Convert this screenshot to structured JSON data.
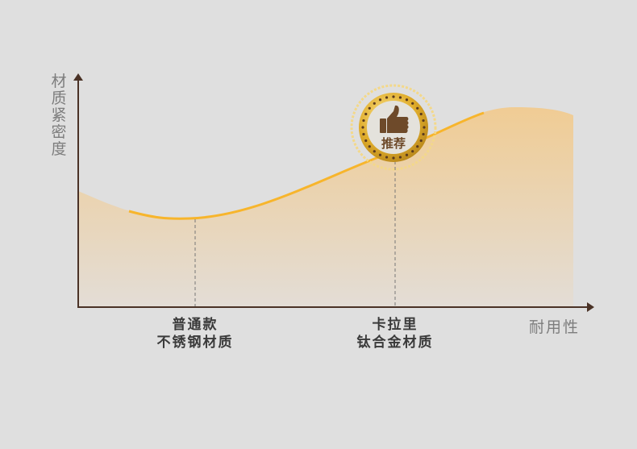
{
  "y_axis_label": "材质紧密度",
  "x_axis_label": "耐用性",
  "categories": [
    {
      "line1": "普通款",
      "line2": "不锈钢材质"
    },
    {
      "line1": "卡拉里",
      "line2": "钛合金材质"
    }
  ],
  "badge": {
    "label": "推荐",
    "icon": "thumbs-up-icon"
  },
  "colors": {
    "axis": "#4a3226",
    "curve": "#f7b52c",
    "fill_top": "#f0cc94",
    "fill_bottom": "#e3ddd6",
    "badge_gold": "#d9a520",
    "badge_text": "#6e4a2a"
  }
}
